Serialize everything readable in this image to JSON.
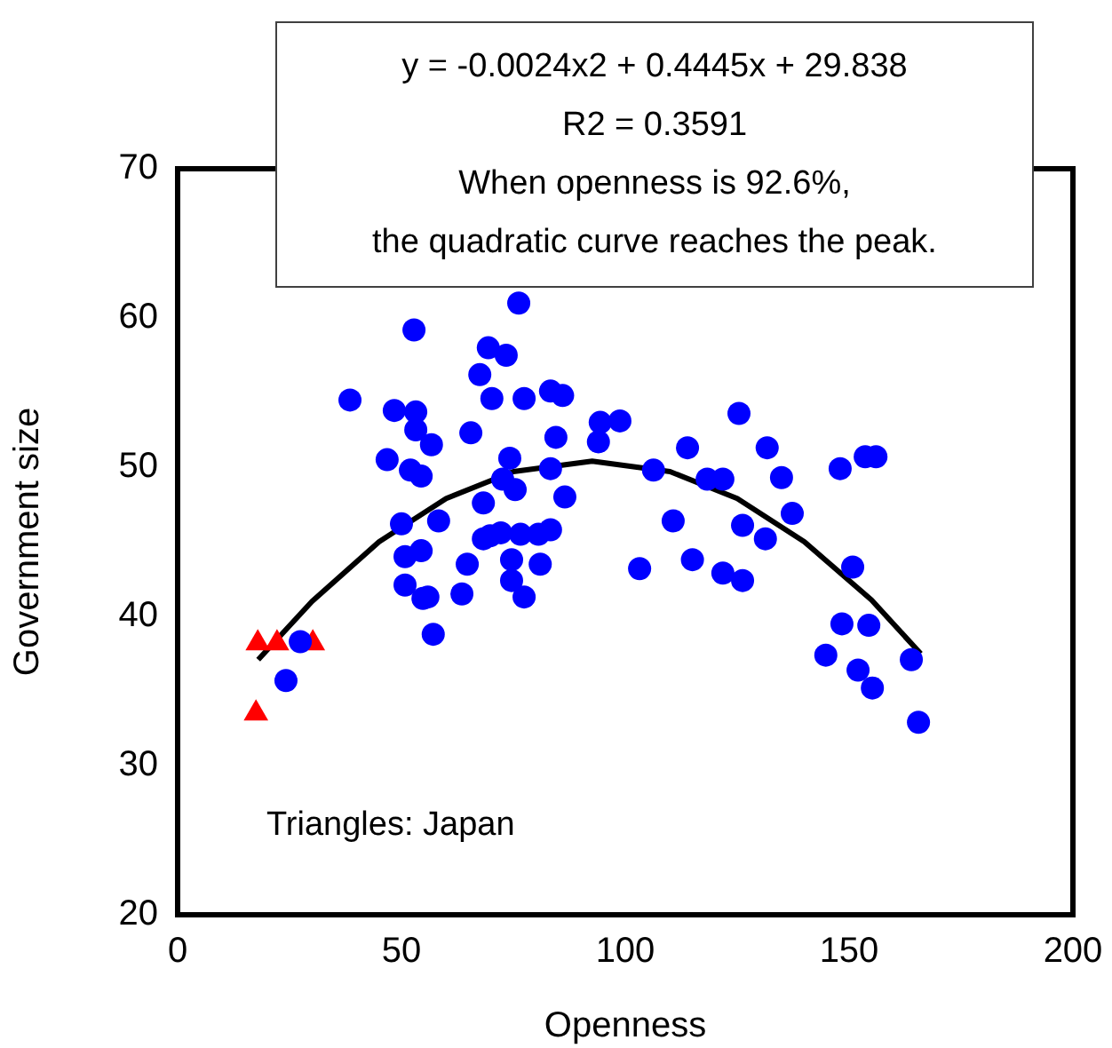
{
  "chart_data": {
    "type": "scatter",
    "xlabel": "Openness",
    "ylabel": "Government size",
    "xlim": [
      0,
      200
    ],
    "xticks": [
      0,
      50,
      100,
      150,
      200
    ],
    "ylim": [
      20,
      70
    ],
    "yticks": [
      20,
      30,
      40,
      50,
      60,
      70
    ],
    "grid": false,
    "legend": false,
    "annotations": [
      "y = -0.0024x2 + 0.4445x + 29.838\nR2 = 0.3591\nWhen openness is 92.6%,\nthe quadratic curve reaches the peak.",
      "Triangles: Japan"
    ],
    "series": [
      {
        "color": "#0000ff",
        "marker": "circle",
        "x": [
          38.5,
          46.8,
          48.4,
          50,
          50.8,
          50.8,
          52.8,
          53.2,
          53.2,
          52,
          54.4,
          54.4,
          54.8,
          55.9,
          56.7,
          58.3,
          57.1,
          63.5,
          64.7,
          65.5,
          67.5,
          68.3,
          68.3,
          69.4,
          70.2,
          69.8,
          72.6,
          73.4,
          72.2,
          74.2,
          75.4,
          74.6,
          74.6,
          76.2,
          77.4,
          76.6,
          77.4,
          80.6,
          81,
          83.3,
          83.3,
          83.3,
          86,
          86.5,
          84.5,
          94,
          94.4,
          98.8,
          103.2,
          106.3,
          110.7,
          113.9,
          115,
          118.3,
          121.8,
          121.8,
          125.4,
          126.2,
          126.2,
          131.7,
          131.3,
          134.9,
          137.3,
          144.8,
          148,
          148.4,
          150.8,
          152,
          153.6,
          156,
          154.4,
          155.2,
          163.9,
          165.5,
          27.4,
          24.2
        ],
        "values": [
          54.5,
          50.5,
          53.8,
          46.2,
          44.0,
          42.1,
          59.2,
          53.7,
          52.5,
          49.8,
          49.4,
          44.4,
          41.2,
          41.3,
          51.5,
          46.4,
          38.8,
          41.5,
          43.5,
          52.3,
          56.2,
          47.6,
          45.2,
          58.0,
          54.6,
          45.4,
          49.2,
          57.5,
          45.6,
          50.6,
          48.5,
          43.8,
          42.4,
          61.0,
          54.6,
          45.5,
          41.3,
          45.5,
          43.5,
          55.1,
          49.9,
          45.8,
          54.8,
          48.0,
          52.0,
          51.7,
          53.0,
          53.1,
          43.2,
          49.8,
          46.4,
          51.3,
          43.8,
          49.2,
          42.9,
          49.2,
          53.6,
          46.1,
          42.4,
          51.3,
          45.2,
          49.3,
          46.9,
          37.4,
          49.9,
          39.5,
          43.3,
          36.4,
          50.7,
          50.7,
          39.4,
          35.2,
          37.1,
          32.9,
          38.3,
          35.7
        ]
      },
      {
        "color": "#ff0000",
        "marker": "triangle",
        "x": [
          17.9,
          22.2,
          30.2,
          17.5
        ],
        "values": [
          38.2,
          38.2,
          38.2,
          33.5
        ]
      },
      {
        "type": "line",
        "color": "#000000",
        "marker": "none",
        "line_style": "solid",
        "x": [
          18,
          30,
          45,
          60,
          75,
          92.6,
          110,
          125,
          140,
          155,
          166
        ],
        "values": [
          37.1,
          41.0,
          45.0,
          47.9,
          49.7,
          50.4,
          49.7,
          47.9,
          45.0,
          41.1,
          37.5
        ]
      }
    ]
  }
}
